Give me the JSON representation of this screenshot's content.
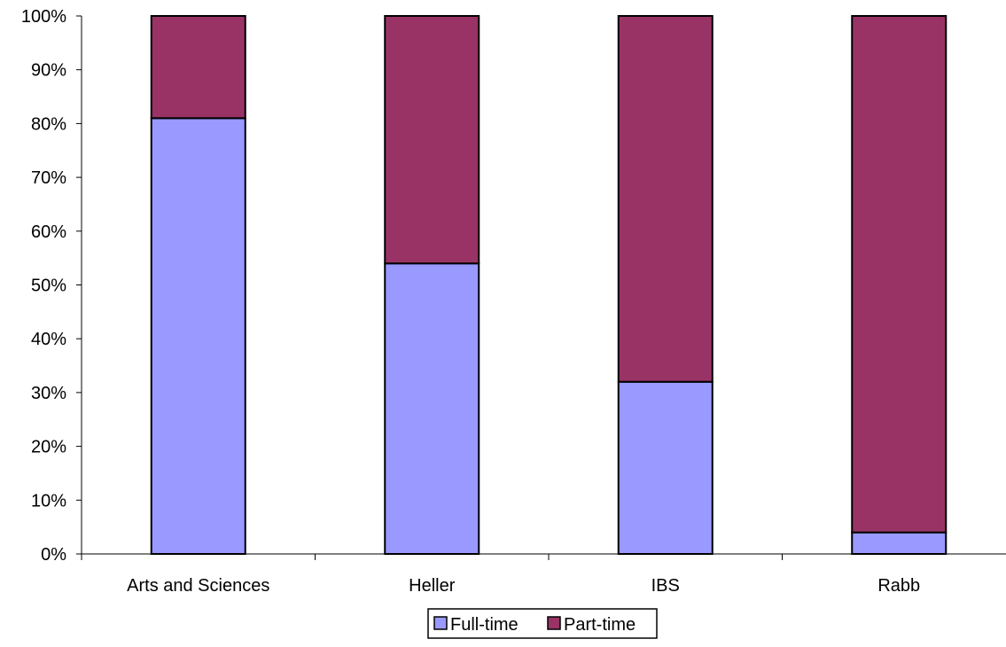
{
  "chart_data": {
    "type": "bar",
    "stacked": true,
    "percent": true,
    "categories": [
      "Arts and Sciences",
      "Heller",
      "IBS",
      "Rabb"
    ],
    "series": [
      {
        "name": "Full-time",
        "values": [
          81,
          54,
          32,
          4
        ],
        "color": "#9999FF"
      },
      {
        "name": "Part-time",
        "values": [
          19,
          46,
          68,
          96
        ],
        "color": "#993366"
      }
    ],
    "title": "",
    "xlabel": "",
    "ylabel": "",
    "ylim": [
      0,
      100
    ],
    "yticks": [
      0,
      10,
      20,
      30,
      40,
      50,
      60,
      70,
      80,
      90,
      100
    ],
    "ytick_labels": [
      "0%",
      "10%",
      "20%",
      "30%",
      "40%",
      "50%",
      "60%",
      "70%",
      "80%",
      "90%",
      "100%"
    ],
    "grid": false,
    "legend_position": "bottom"
  }
}
